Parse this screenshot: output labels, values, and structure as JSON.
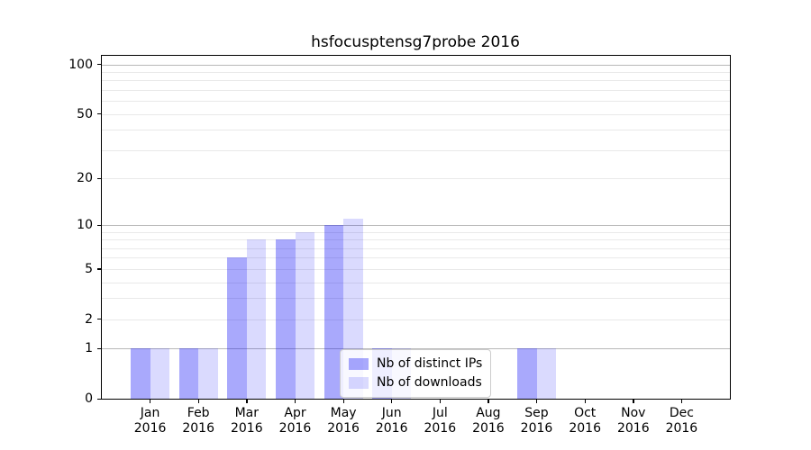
{
  "chart_data": {
    "type": "bar",
    "title": "hsfocusptensg7probe 2016",
    "year_label": "2016",
    "categories": [
      "Jan",
      "Feb",
      "Mar",
      "Apr",
      "May",
      "Jun",
      "Jul",
      "Aug",
      "Sep",
      "Oct",
      "Nov",
      "Dec"
    ],
    "series": [
      {
        "name": "Nb of distinct IPs",
        "color": "rgba(8,8,245,0.35)",
        "values": [
          1,
          1,
          6,
          8,
          10,
          1,
          0,
          0,
          1,
          0,
          0,
          0
        ]
      },
      {
        "name": "Nb of downloads",
        "color": "rgba(8,8,245,0.15)",
        "values": [
          1,
          1,
          8,
          9,
          11,
          1,
          0,
          0,
          1,
          0,
          0,
          0
        ]
      }
    ],
    "xlabel": "",
    "ylabel": "",
    "yscale": "symlog-like log10(1+y)",
    "ylim": [
      0,
      114
    ],
    "yticks": [
      {
        "value": 100,
        "label": "100"
      },
      {
        "value": 50,
        "label": "50"
      },
      {
        "value": 20,
        "label": "20"
      },
      {
        "value": 10,
        "label": "10"
      },
      {
        "value": 5,
        "label": "5"
      },
      {
        "value": 2,
        "label": "2"
      },
      {
        "value": 1,
        "label": "1"
      },
      {
        "value": 0,
        "label": "0"
      }
    ],
    "major_gridlines": [
      1,
      10,
      100
    ],
    "minor_gridlines": [
      2,
      3,
      4,
      5,
      6,
      7,
      8,
      9,
      20,
      30,
      40,
      50,
      60,
      70,
      80,
      90
    ],
    "grid": true,
    "legend_position": "lower center",
    "colors": {
      "major_grid": "#b8b8b8",
      "minor_grid": "#e9e9e9",
      "spine": "#000000",
      "text": "#000000",
      "background": "#ffffff"
    }
  }
}
